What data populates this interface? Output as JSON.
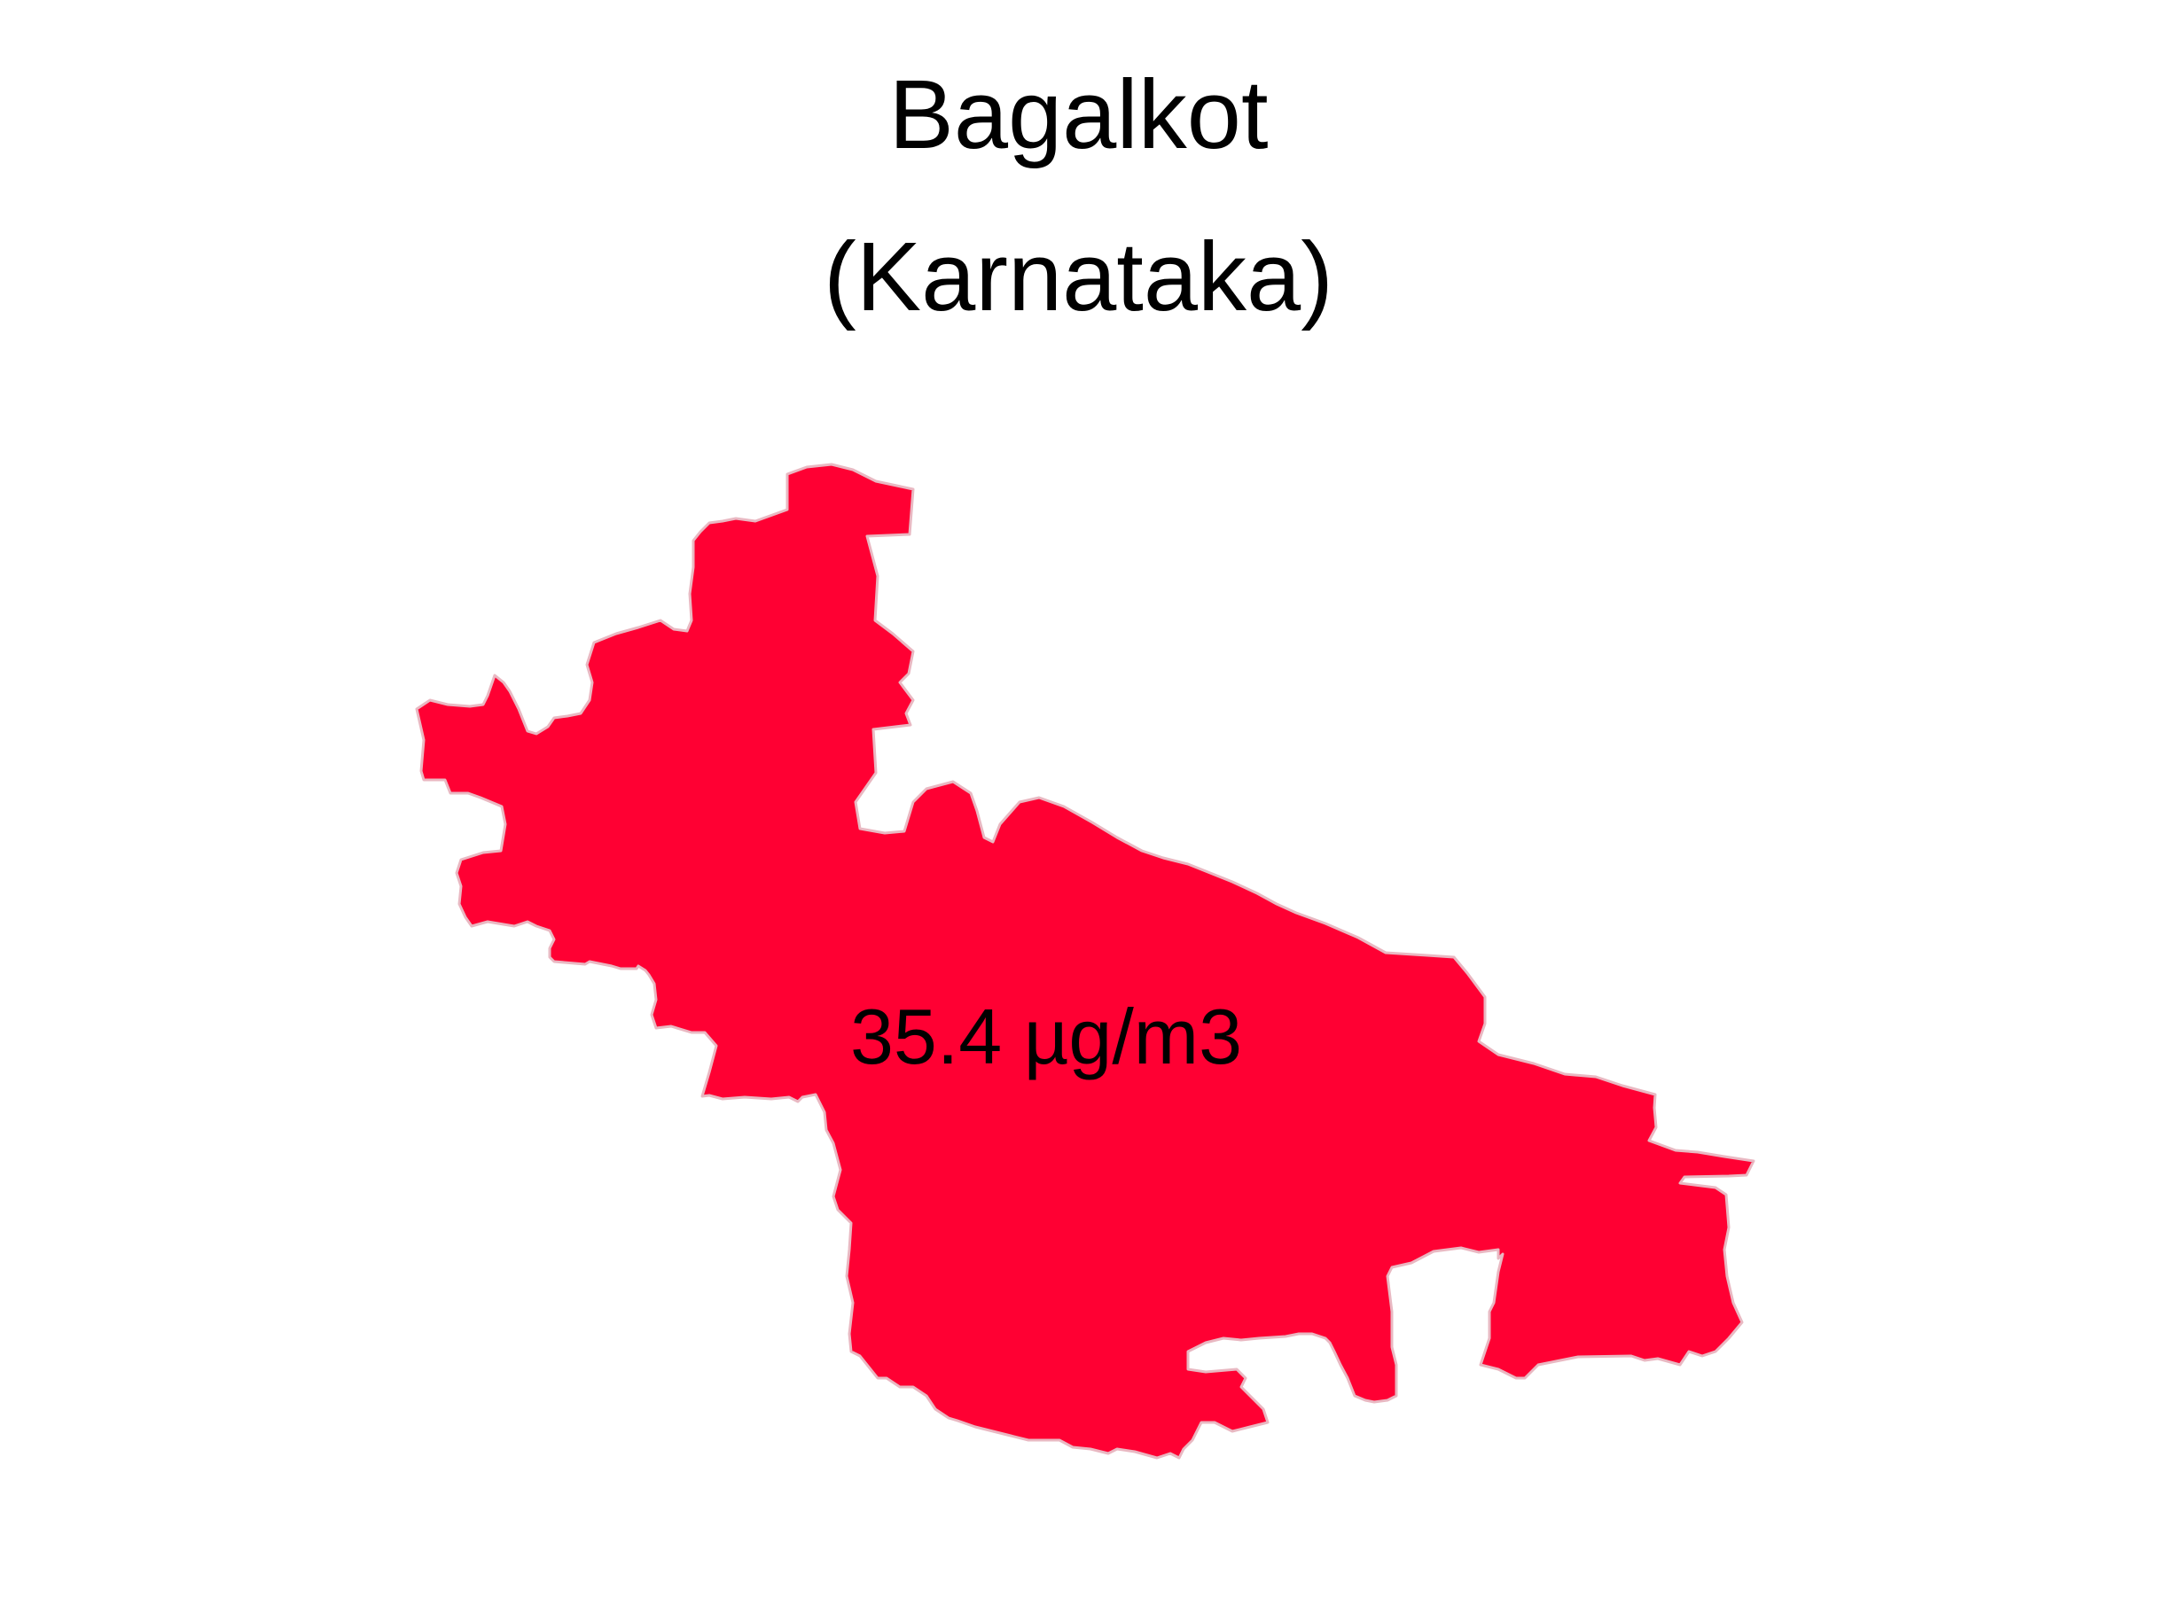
{
  "title": {
    "line1": "Bagalkot",
    "line2": "(Karnataka)"
  },
  "region": {
    "name": "Bagalkot",
    "value_label": "35.4 µg/m3",
    "value": 35.4,
    "unit": "µg/m3"
  },
  "colors": {
    "fill": "#ff0033",
    "border": "#e9b8c2",
    "background": "#ffffff",
    "text": "#000000"
  }
}
